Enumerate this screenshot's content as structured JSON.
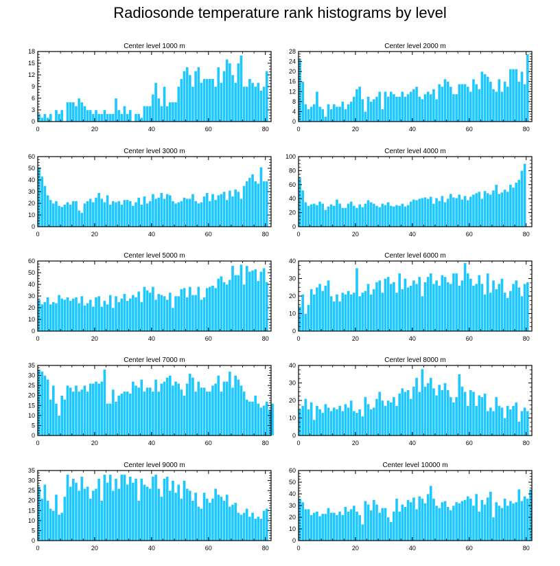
{
  "title": "Radiosonde temperature rank histograms by level",
  "style": {
    "bar_color": "#1ec8ff",
    "bar_edge_color": "#ffffff",
    "axis_color": "#000000"
  },
  "chart_data": [
    {
      "type": "bar",
      "title": "Center level 1000 m",
      "xlabel": "",
      "ylabel": "",
      "xlim": [
        0,
        82
      ],
      "xticks": [
        0,
        20,
        40,
        60,
        80
      ],
      "ylim": [
        0,
        18
      ],
      "yticks": [
        0,
        3,
        6,
        9,
        12,
        15,
        18
      ],
      "x_start": 0,
      "values": [
        2,
        1,
        2,
        1,
        2,
        0,
        3,
        2,
        3,
        0,
        5,
        5,
        5,
        4,
        6,
        5,
        4,
        3,
        3,
        2,
        3,
        2,
        2,
        3,
        2,
        2,
        2,
        6,
        3,
        2,
        4,
        2,
        3,
        0,
        2,
        2,
        1,
        4,
        4,
        4,
        7,
        10,
        6,
        4,
        9,
        4,
        5,
        5,
        5,
        9,
        11,
        13,
        14,
        12,
        9,
        13,
        14,
        10,
        11,
        11,
        11,
        11,
        9,
        14,
        10,
        13,
        16,
        15,
        12,
        10,
        15,
        17,
        9,
        9,
        11,
        10,
        9,
        10,
        8,
        9,
        13
      ]
    },
    {
      "type": "bar",
      "title": "Center level 2000 m",
      "xlabel": "",
      "ylabel": "",
      "xlim": [
        0,
        82
      ],
      "xticks": [
        0,
        20,
        40,
        60,
        80
      ],
      "ylim": [
        0,
        28
      ],
      "yticks": [
        0,
        4,
        8,
        12,
        16,
        20,
        24,
        28
      ],
      "x_start": 0,
      "values": [
        25,
        16,
        7,
        5,
        6,
        7,
        12,
        6,
        5,
        2,
        7,
        5,
        7,
        6,
        6,
        8,
        5,
        7,
        8,
        10,
        13,
        14,
        9,
        4,
        10,
        8,
        9,
        10,
        12,
        5,
        12,
        10,
        12,
        11,
        10,
        10,
        12,
        10,
        11,
        12,
        13,
        14,
        10,
        9,
        11,
        12,
        11,
        13,
        9,
        15,
        14,
        17,
        16,
        14,
        11,
        11,
        15,
        15,
        15,
        14,
        12,
        17,
        15,
        13,
        20,
        19,
        18,
        16,
        13,
        12,
        17,
        12,
        16,
        14,
        21,
        21,
        21,
        16,
        20,
        15,
        27
      ]
    },
    {
      "type": "bar",
      "title": "Center level 3000 m",
      "xlabel": "",
      "ylabel": "",
      "xlim": [
        0,
        82
      ],
      "xticks": [
        0,
        20,
        40,
        60,
        80
      ],
      "ylim": [
        0,
        60
      ],
      "yticks": [
        0,
        10,
        20,
        30,
        40,
        50,
        60
      ],
      "x_start": 0,
      "values": [
        51,
        43,
        35,
        27,
        23,
        20,
        22,
        18,
        17,
        19,
        21,
        19,
        22,
        22,
        14,
        12,
        20,
        22,
        24,
        21,
        25,
        29,
        24,
        21,
        27,
        19,
        22,
        21,
        22,
        19,
        23,
        23,
        22,
        18,
        21,
        25,
        19,
        26,
        20,
        22,
        28,
        24,
        25,
        29,
        24,
        28,
        27,
        22,
        20,
        21,
        22,
        25,
        24,
        24,
        28,
        22,
        20,
        21,
        26,
        29,
        22,
        28,
        23,
        27,
        28,
        30,
        23,
        31,
        26,
        32,
        30,
        24,
        35,
        39,
        42,
        45,
        39,
        37,
        51,
        39,
        39
      ]
    },
    {
      "type": "bar",
      "title": "Center level 4000 m",
      "xlabel": "",
      "ylabel": "",
      "xlim": [
        0,
        82
      ],
      "xticks": [
        0,
        20,
        40,
        60,
        80
      ],
      "ylim": [
        0,
        100
      ],
      "yticks": [
        0,
        20,
        40,
        60,
        80,
        100
      ],
      "x_start": 0,
      "values": [
        70,
        52,
        35,
        30,
        32,
        33,
        31,
        36,
        33,
        24,
        29,
        32,
        30,
        39,
        33,
        27,
        27,
        33,
        36,
        30,
        27,
        32,
        28,
        33,
        38,
        35,
        33,
        30,
        28,
        33,
        31,
        35,
        30,
        29,
        31,
        30,
        33,
        29,
        31,
        36,
        39,
        38,
        40,
        41,
        42,
        40,
        43,
        33,
        41,
        37,
        44,
        35,
        40,
        47,
        42,
        41,
        46,
        39,
        44,
        38,
        43,
        46,
        48,
        50,
        40,
        51,
        48,
        46,
        52,
        60,
        47,
        49,
        53,
        50,
        60,
        56,
        63,
        67,
        80,
        90
      ]
    },
    {
      "type": "bar",
      "title": "Center level 5000 m",
      "xlabel": "",
      "ylabel": "",
      "xlim": [
        0,
        82
      ],
      "xticks": [
        0,
        20,
        40,
        60,
        80
      ],
      "ylim": [
        0,
        60
      ],
      "yticks": [
        0,
        10,
        20,
        30,
        40,
        50,
        60
      ],
      "x_start": 0,
      "values": [
        27,
        23,
        25,
        29,
        23,
        25,
        24,
        31,
        28,
        27,
        29,
        26,
        28,
        29,
        24,
        30,
        22,
        24,
        27,
        21,
        29,
        30,
        21,
        26,
        23,
        31,
        20,
        30,
        25,
        28,
        32,
        26,
        28,
        31,
        29,
        34,
        25,
        38,
        35,
        33,
        38,
        27,
        32,
        31,
        30,
        27,
        33,
        20,
        30,
        30,
        36,
        37,
        29,
        38,
        31,
        31,
        38,
        27,
        29,
        37,
        38,
        39,
        37,
        45,
        47,
        42,
        40,
        44,
        56,
        48,
        48,
        57,
        40,
        56,
        51,
        52,
        53,
        43,
        51,
        54,
        42
      ]
    },
    {
      "type": "bar",
      "title": "Center level 6000 m",
      "xlabel": "",
      "ylabel": "",
      "xlim": [
        0,
        82
      ],
      "xticks": [
        0,
        20,
        40,
        60,
        80
      ],
      "ylim": [
        0,
        40
      ],
      "yticks": [
        0,
        10,
        20,
        30,
        40
      ],
      "x_start": 0,
      "values": [
        14,
        21,
        10,
        15,
        24,
        21,
        25,
        27,
        23,
        26,
        29,
        20,
        17,
        21,
        17,
        22,
        21,
        23,
        21,
        22,
        36,
        20,
        22,
        23,
        27,
        21,
        24,
        28,
        29,
        22,
        30,
        31,
        27,
        28,
        22,
        33,
        24,
        30,
        25,
        26,
        29,
        27,
        31,
        20,
        28,
        31,
        33,
        27,
        29,
        26,
        32,
        31,
        28,
        27,
        33,
        33,
        26,
        29,
        39,
        33,
        30,
        26,
        27,
        32,
        27,
        21,
        33,
        22,
        29,
        24,
        27,
        30,
        22,
        19,
        23,
        27,
        29,
        25,
        20,
        27,
        28
      ]
    },
    {
      "type": "bar",
      "title": "Center level 7000 m",
      "xlabel": "",
      "ylabel": "",
      "xlim": [
        0,
        82
      ],
      "xticks": [
        0,
        20,
        40,
        60,
        80
      ],
      "ylim": [
        0,
        35
      ],
      "yticks": [
        0,
        5,
        10,
        15,
        20,
        25,
        30,
        35
      ],
      "x_start": 0,
      "values": [
        33,
        32,
        30,
        28,
        18,
        25,
        16,
        10,
        20,
        18,
        25,
        24,
        22,
        25,
        22,
        23,
        25,
        22,
        26,
        26,
        27,
        26,
        27,
        33,
        16,
        16,
        23,
        17,
        20,
        21,
        22,
        22,
        21,
        27,
        25,
        24,
        28,
        22,
        24,
        24,
        22,
        28,
        22,
        26,
        27,
        29,
        30,
        25,
        27,
        26,
        23,
        20,
        26,
        31,
        29,
        22,
        27,
        24,
        24,
        22,
        22,
        25,
        26,
        30,
        22,
        27,
        27,
        32,
        24,
        30,
        28,
        25,
        22,
        18,
        17,
        17,
        20,
        16,
        14,
        15,
        17,
        13,
        16
      ]
    },
    {
      "type": "bar",
      "title": "Center level 8000 m",
      "xlabel": "",
      "ylabel": "",
      "xlim": [
        0,
        82
      ],
      "xticks": [
        0,
        20,
        40,
        60,
        80
      ],
      "ylim": [
        0,
        40
      ],
      "yticks": [
        0,
        10,
        20,
        30,
        40
      ],
      "x_start": 0,
      "values": [
        15,
        17,
        21,
        15,
        19,
        9,
        17,
        15,
        13,
        18,
        16,
        14,
        16,
        15,
        17,
        14,
        18,
        16,
        20,
        14,
        13,
        15,
        11,
        22,
        18,
        15,
        16,
        21,
        25,
        20,
        17,
        20,
        19,
        22,
        17,
        24,
        27,
        25,
        26,
        21,
        28,
        33,
        25,
        38,
        28,
        30,
        33,
        27,
        23,
        29,
        26,
        30,
        26,
        22,
        19,
        22,
        35,
        28,
        25,
        17,
        26,
        25,
        17,
        23,
        22,
        24,
        14,
        16,
        14,
        22,
        17,
        16,
        10,
        17,
        15,
        17,
        19,
        8,
        14,
        16,
        14
      ]
    },
    {
      "type": "bar",
      "title": "Center level 9000 m",
      "xlabel": "",
      "ylabel": "",
      "xlim": [
        0,
        82
      ],
      "xticks": [
        0,
        20,
        40,
        60,
        80
      ],
      "ylim": [
        0,
        35
      ],
      "yticks": [
        0,
        5,
        10,
        15,
        20,
        25,
        30,
        35
      ],
      "x_start": 0,
      "values": [
        27,
        21,
        28,
        20,
        16,
        15,
        23,
        13,
        14,
        22,
        33,
        27,
        31,
        29,
        25,
        32,
        26,
        27,
        21,
        25,
        26,
        31,
        20,
        33,
        29,
        33,
        25,
        31,
        26,
        33,
        33,
        28,
        32,
        29,
        31,
        20,
        31,
        28,
        27,
        26,
        32,
        33,
        26,
        22,
        31,
        32,
        25,
        30,
        24,
        28,
        21,
        30,
        26,
        25,
        20,
        24,
        17,
        16,
        24,
        21,
        19,
        21,
        26,
        23,
        22,
        20,
        23,
        17,
        18,
        19,
        14,
        13,
        14,
        16,
        12,
        14,
        11,
        12,
        11,
        15,
        16
      ]
    },
    {
      "type": "bar",
      "title": "Center level 10000 m",
      "xlabel": "",
      "ylabel": "",
      "xlim": [
        0,
        82
      ],
      "xticks": [
        0,
        20,
        40,
        60,
        80
      ],
      "ylim": [
        0,
        60
      ],
      "yticks": [
        0,
        10,
        20,
        30,
        40,
        50,
        60
      ],
      "x_start": 0,
      "values": [
        36,
        33,
        27,
        27,
        22,
        24,
        25,
        21,
        23,
        23,
        28,
        24,
        24,
        22,
        25,
        22,
        29,
        25,
        27,
        30,
        25,
        22,
        14,
        34,
        31,
        26,
        35,
        31,
        24,
        28,
        28,
        20,
        16,
        25,
        36,
        25,
        31,
        29,
        35,
        33,
        37,
        27,
        38,
        36,
        32,
        40,
        47,
        36,
        30,
        28,
        33,
        34,
        29,
        26,
        30,
        33,
        32,
        34,
        35,
        38,
        36,
        30,
        40,
        25,
        35,
        31,
        37,
        42,
        20,
        33,
        30,
        28,
        36,
        30,
        34,
        32,
        33,
        44,
        34,
        38,
        36,
        44
      ]
    }
  ]
}
